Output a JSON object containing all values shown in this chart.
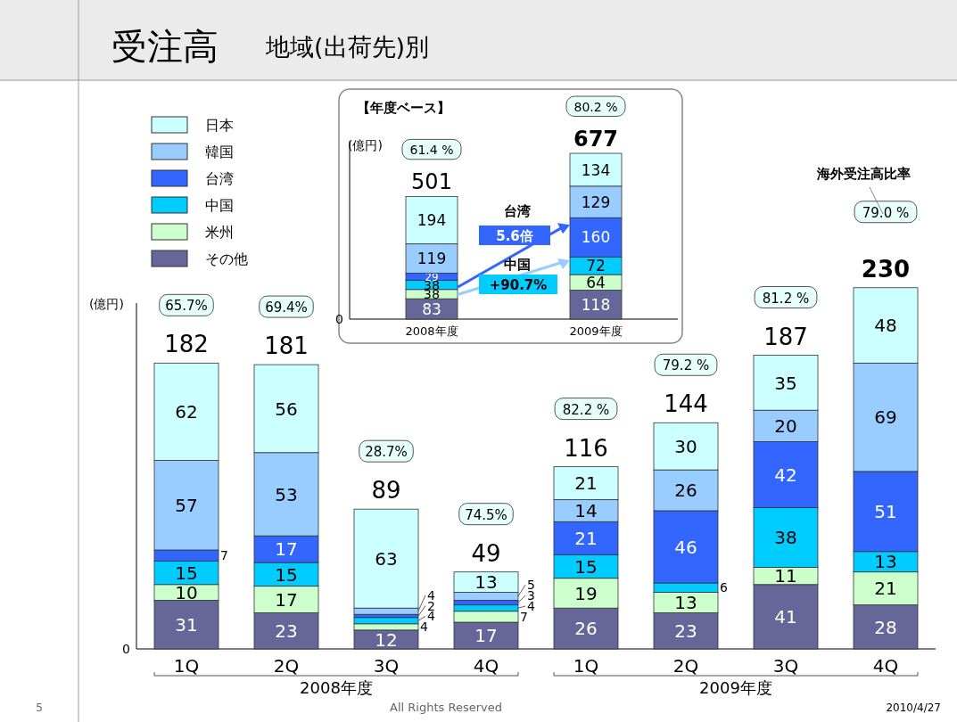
{
  "chart_data": [
    {
      "type": "bar",
      "stacked": true,
      "title": "受注高",
      "subtitle": "地域(出荷先)別",
      "ylabel": "(億円)",
      "categories": [
        "1Q",
        "2Q",
        "3Q",
        "4Q",
        "1Q",
        "2Q",
        "3Q",
        "4Q"
      ],
      "data_labels": true,
      "legend": "top left",
      "series": [
        {
          "name": "その他",
          "color": "#666699",
          "values": [
            31,
            23,
            12,
            17,
            26,
            23,
            41,
            28
          ]
        },
        {
          "name": "米州",
          "color": "#ccffcc",
          "values": [
            10,
            17,
            4,
            7,
            19,
            13,
            11,
            21
          ]
        },
        {
          "name": "中国",
          "color": "#00ccff",
          "values": [
            15,
            15,
            4,
            4,
            15,
            6,
            38,
            13
          ]
        },
        {
          "name": "台湾",
          "color": "#3366ff",
          "values": [
            7,
            17,
            2,
            3,
            21,
            46,
            42,
            51
          ]
        },
        {
          "name": "韓国",
          "color": "#99ccff",
          "values": [
            57,
            53,
            4,
            5,
            14,
            26,
            20,
            69
          ]
        },
        {
          "name": "日本",
          "color": "#ccffff",
          "values": [
            62,
            56,
            63,
            13,
            21,
            30,
            35,
            48
          ]
        }
      ],
      "totals": [
        "182",
        "181",
        "89",
        "49",
        "116",
        "144",
        "187",
        "230"
      ],
      "annotations": [
        "65.7%",
        "69.4%",
        "28.7%",
        "74.5%",
        "82.2 %",
        "79.2 %",
        "81.2 %",
        "79.0 %",
        "海外受注高比率",
        "2008年度",
        "2009年度",
        "5",
        "All Rights Reserved",
        "2010/4/27",
        "0"
      ]
    },
    {
      "type": "bar",
      "stacked": true,
      "title": "【年度ベース】",
      "ylabel": "(億円)",
      "categories": [
        "2008年度",
        "2009年度"
      ],
      "data_labels": true,
      "series": [
        {
          "color": "#666699",
          "values": [
            83,
            118
          ]
        },
        {
          "color": "#ccffcc",
          "values": [
            38,
            64
          ]
        },
        {
          "color": "#00ccff",
          "values": [
            38,
            72
          ]
        },
        {
          "color": "#3366ff",
          "values": [
            29,
            160
          ]
        },
        {
          "color": "#99ccff",
          "values": [
            119,
            129
          ]
        },
        {
          "color": "#ccffff",
          "values": [
            194,
            134
          ]
        }
      ],
      "totals": [
        "501",
        "677"
      ],
      "annotations": [
        "61.4 %",
        "80.2 %",
        "台湾",
        "5.6倍",
        "中国",
        "+90.7%",
        "0"
      ]
    }
  ]
}
